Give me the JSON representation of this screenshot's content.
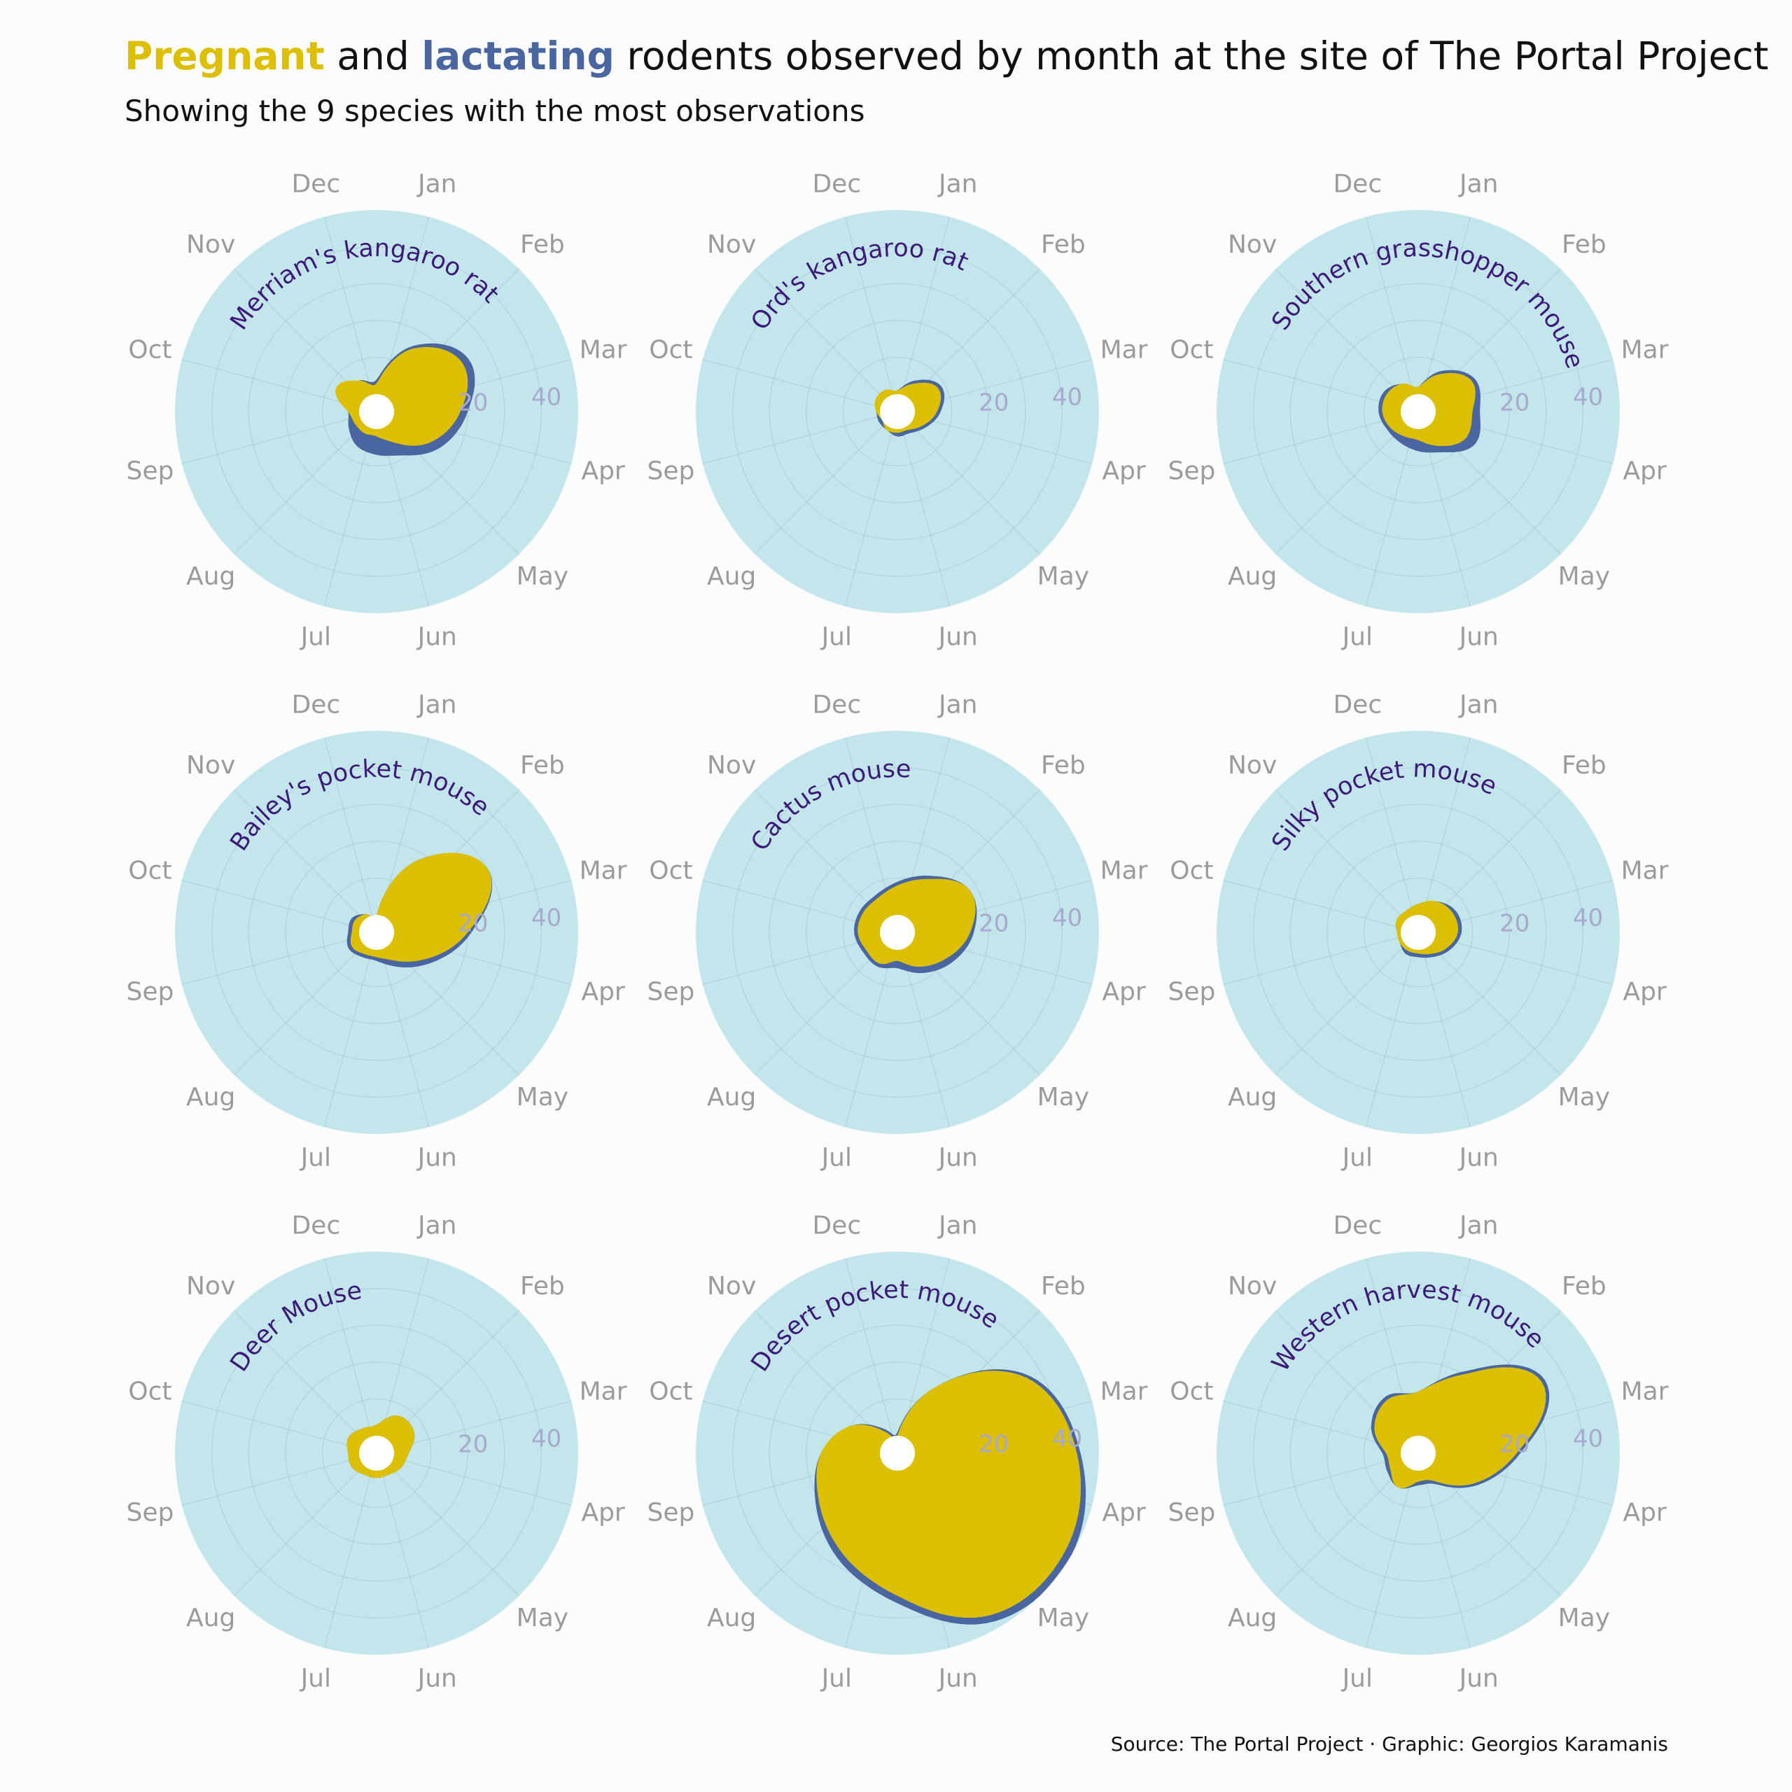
{
  "title": {
    "pregnant": "Pregnant",
    "and": " and ",
    "lactating": "lactating",
    "rest": " rodents observed by month at the site of The Portal Project"
  },
  "subtitle": "Showing the 9 species with the most observations",
  "caption": "Source: The Portal Project · Graphic: Georgios Karamanis",
  "colors": {
    "pregnant": "#dcc000",
    "lactating": "#4a66a0",
    "panel": "#c2e6ec",
    "grid": "#a9c7d0",
    "species_label": "#3d1a7a",
    "month_label": "#9b9b9b",
    "tick_label": "#a8a9cc"
  },
  "chart_data": {
    "type": "polar-area",
    "months": [
      "Jan",
      "Feb",
      "Mar",
      "Apr",
      "May",
      "Jun",
      "Jul",
      "Aug",
      "Sep",
      "Oct",
      "Nov",
      "Dec"
    ],
    "r_ticks": [
      20,
      40
    ],
    "r_max": 50,
    "panels": [
      {
        "species": "Merriam's kangaroo rat",
        "pregnant": [
          3,
          15,
          22,
          18,
          12,
          5,
          2,
          2,
          2,
          3,
          8,
          5
        ],
        "lactating": [
          4,
          16,
          24,
          20,
          15,
          9,
          7,
          6,
          4,
          3,
          6,
          5
        ]
      },
      {
        "species": "Ord's kangaroo rat",
        "pregnant": [
          1,
          4,
          8,
          6,
          3,
          1,
          1,
          1,
          0,
          1,
          2,
          2
        ],
        "lactating": [
          1,
          5,
          9,
          7,
          4,
          2,
          2,
          1,
          1,
          1,
          2,
          2
        ]
      },
      {
        "species": "Southern grasshopper mouse",
        "pregnant": [
          2,
          7,
          12,
          10,
          10,
          6,
          3,
          3,
          4,
          5,
          5,
          4
        ],
        "lactating": [
          2,
          8,
          13,
          12,
          13,
          8,
          6,
          5,
          5,
          6,
          6,
          4
        ]
      },
      {
        "species": "Bailey's pocket mouse",
        "pregnant": [
          0,
          18,
          30,
          20,
          10,
          4,
          2,
          2,
          3,
          2,
          2,
          1
        ],
        "lactating": [
          0,
          18,
          30,
          21,
          12,
          6,
          3,
          3,
          4,
          3,
          3,
          1
        ]
      },
      {
        "species": "Cactus mouse",
        "pregnant": [
          8,
          12,
          18,
          15,
          10,
          6,
          3,
          5,
          5,
          6,
          6,
          6
        ],
        "lactating": [
          9,
          13,
          18,
          16,
          12,
          8,
          5,
          6,
          6,
          7,
          7,
          7
        ]
      },
      {
        "species": "Silky pocket mouse",
        "pregnant": [
          3,
          5,
          6,
          6,
          4,
          2,
          1,
          1,
          1,
          1,
          2,
          2
        ],
        "lactating": [
          3,
          5,
          7,
          7,
          5,
          3,
          2,
          2,
          1,
          1,
          2,
          2
        ]
      },
      {
        "species": "Deer Mouse",
        "pregnant": [
          3,
          7,
          7,
          4,
          3,
          2,
          2,
          2,
          3,
          3,
          4,
          3
        ],
        "lactating": [
          3,
          7,
          7,
          4,
          3,
          2,
          2,
          2,
          3,
          3,
          4,
          3
        ]
      },
      {
        "species": "Desert pocket mouse",
        "pregnant": [
          0,
          16,
          36,
          44,
          48,
          46,
          34,
          26,
          20,
          16,
          10,
          2
        ],
        "lactating": [
          1,
          16,
          37,
          45,
          50,
          48,
          36,
          28,
          21,
          16,
          10,
          3
        ]
      },
      {
        "species": "Western harvest mouse",
        "pregnant": [
          12,
          20,
          34,
          22,
          12,
          4,
          3,
          6,
          4,
          4,
          9,
          12
        ],
        "lactating": [
          12,
          21,
          35,
          23,
          13,
          5,
          4,
          6,
          5,
          5,
          10,
          13
        ]
      }
    ]
  }
}
